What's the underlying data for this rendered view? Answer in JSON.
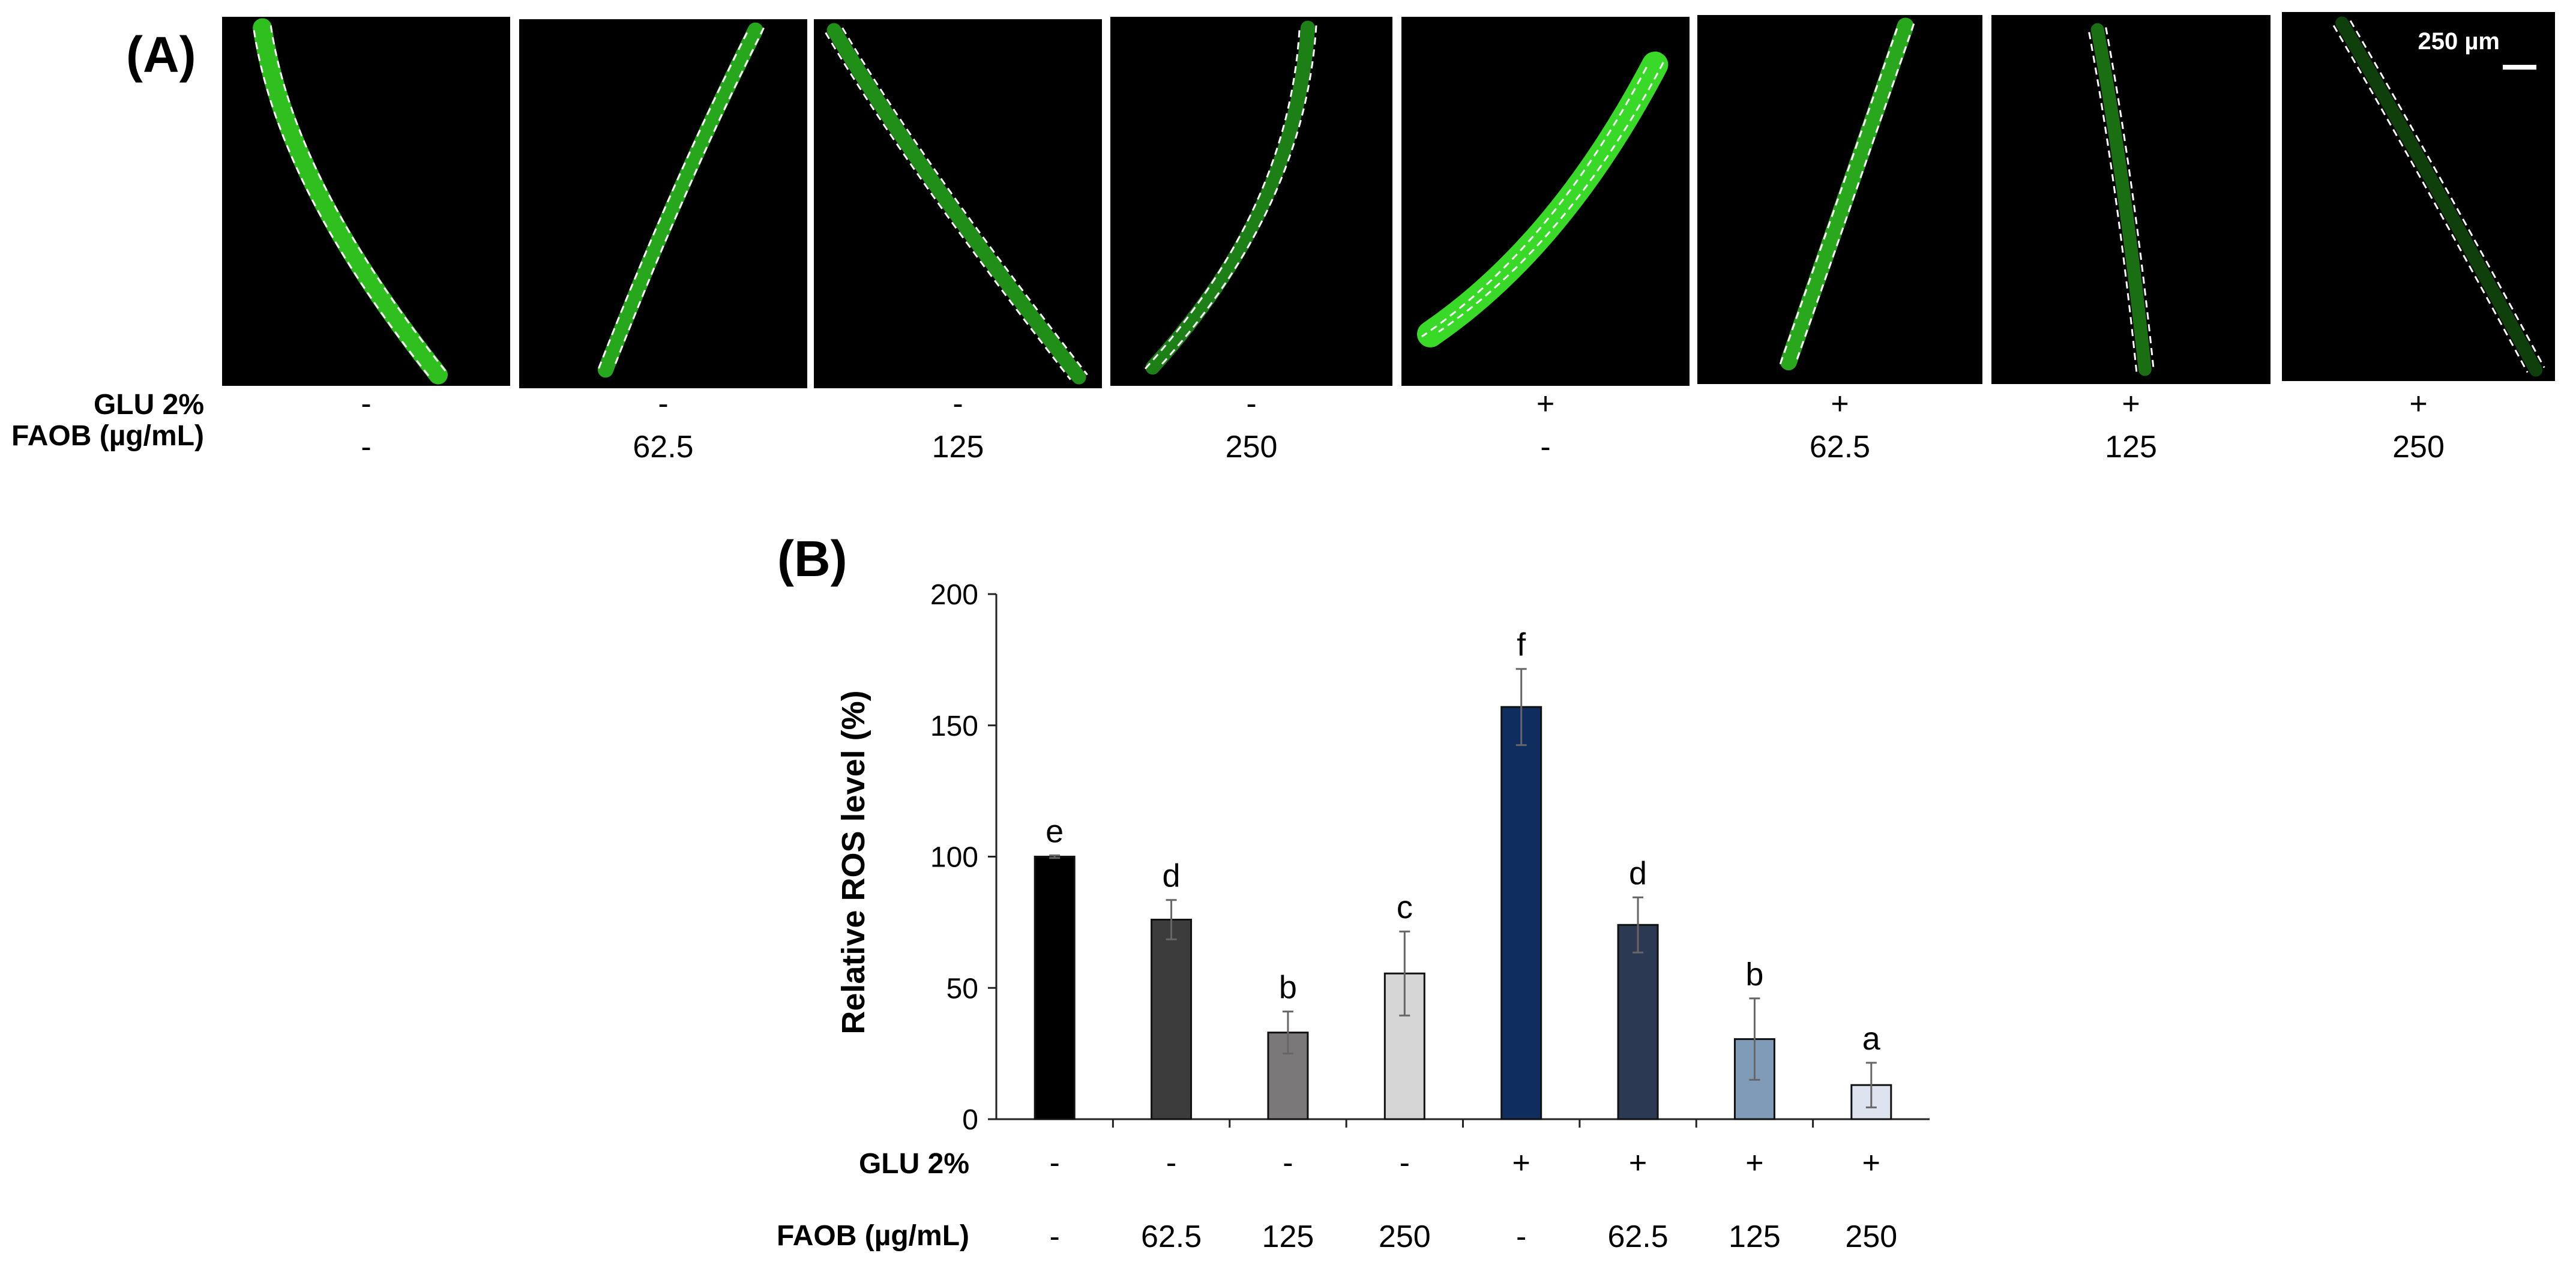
{
  "panel_a": {
    "label": "(A)",
    "scale_bar_label": "250 µm",
    "row_labels": {
      "glu": "GLU 2%",
      "faob": "FAOB (µg/mL)"
    },
    "images": [
      {
        "glu": "-",
        "faob": "-",
        "fluorescence_color": "#2fbf1f"
      },
      {
        "glu": "-",
        "faob": "62.5",
        "fluorescence_color": "#27a81c"
      },
      {
        "glu": "-",
        "faob": "125",
        "fluorescence_color": "#1f8f17"
      },
      {
        "glu": "-",
        "faob": "250",
        "fluorescence_color": "#1c8016"
      },
      {
        "glu": "+",
        "faob": "-",
        "fluorescence_color": "#39d927"
      },
      {
        "glu": "+",
        "faob": "62.5",
        "fluorescence_color": "#2aa81d"
      },
      {
        "glu": "+",
        "faob": "125",
        "fluorescence_color": "#1a6f13"
      },
      {
        "glu": "+",
        "faob": "250",
        "fluorescence_color": "#0f3f0b"
      }
    ]
  },
  "panel_b": {
    "label": "(B)"
  },
  "chart_data": {
    "type": "bar",
    "title": "",
    "xlabel": "",
    "ylabel": "Relative ROS level (%)",
    "ylim": [
      0,
      200
    ],
    "yticks": [
      0,
      50,
      100,
      150,
      200
    ],
    "grid": false,
    "legend": "none",
    "row_labels": {
      "glu": "GLU 2%",
      "faob": "FAOB (µg/mL)"
    },
    "categories": [
      {
        "glu": "-",
        "faob": "-"
      },
      {
        "glu": "-",
        "faob": "62.5"
      },
      {
        "glu": "-",
        "faob": "125"
      },
      {
        "glu": "-",
        "faob": "250"
      },
      {
        "glu": "+",
        "faob": "-"
      },
      {
        "glu": "+",
        "faob": "62.5"
      },
      {
        "glu": "+",
        "faob": "125"
      },
      {
        "glu": "+",
        "faob": "250"
      }
    ],
    "values": [
      100,
      76,
      33,
      55.5,
      157,
      74,
      30.5,
      13
    ],
    "errors": [
      0.5,
      7.5,
      8,
      16,
      14.5,
      10.5,
      15.5,
      8.5
    ],
    "significance": [
      "e",
      "d",
      "b",
      "c",
      "f",
      "d",
      "b",
      "a"
    ],
    "colors": [
      "#000000",
      "#3c3c3c",
      "#7a7878",
      "#d6d6d6",
      "#0f2d5e",
      "#2b3a52",
      "#7f9bb8",
      "#dde4ef"
    ]
  }
}
